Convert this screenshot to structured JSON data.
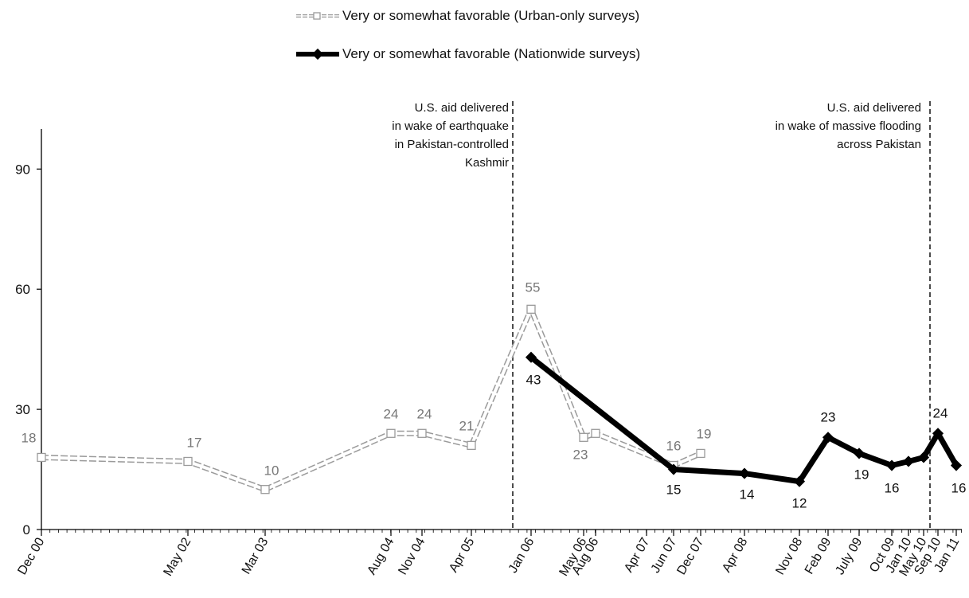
{
  "legend": {
    "urban": "Very or somewhat favorable (Urban-only surveys)",
    "nationwide": "Very or somewhat favorable (Nationwide surveys)"
  },
  "annotations": {
    "earthquake": [
      "U.S. aid delivered",
      "in wake of earthquake",
      "in Pakistan-controlled",
      "Kashmir"
    ],
    "flooding": [
      "U.S. aid delivered",
      "in wake of massive flooding",
      "across Pakistan"
    ]
  },
  "chart_data": {
    "type": "line",
    "ylim": [
      0,
      100
    ],
    "yticks": [
      0,
      30,
      60,
      90
    ],
    "grid": false,
    "legend_position": "top-center",
    "x_ticks": [
      "Dec 00",
      "May 02",
      "Mar 03",
      "Aug 04",
      "Nov 04",
      "Apr 05",
      "Jan 06",
      "May 06",
      "Aug 06",
      "Apr 07",
      "Jun 07",
      "Dec 07",
      "Apr 08",
      "Nov 08",
      "Feb 09",
      "July 09",
      "Oct 09",
      "Jan 10",
      "May 10",
      "Sep 10",
      "Jan 11"
    ],
    "series": [
      {
        "name": "Very or somewhat favorable (Urban-only surveys)",
        "style": "hollow",
        "color": "#9a9a9a",
        "points": [
          {
            "x": "Dec 00",
            "y": 18,
            "label": "18"
          },
          {
            "x": "May 02",
            "y": 17,
            "label": "17"
          },
          {
            "x": "Mar 03",
            "y": 10,
            "label": "10"
          },
          {
            "x": "Aug 04",
            "y": 24,
            "label": "24"
          },
          {
            "x": "Nov 04",
            "y": 24,
            "label": "24"
          },
          {
            "x": "Apr 05",
            "y": 21,
            "label": "21"
          },
          {
            "x": "Jan 06",
            "y": 55,
            "label": "55"
          },
          {
            "x": "May 06",
            "y": 23,
            "label": "23"
          },
          {
            "x": "Aug 06",
            "y": 24,
            "label": ""
          },
          {
            "x": "Jun 07",
            "y": 16,
            "label": "16"
          },
          {
            "x": "Dec 07",
            "y": 19,
            "label": "19"
          }
        ]
      },
      {
        "name": "Very or somewhat favorable (Nationwide surveys)",
        "style": "solid",
        "color": "#000000",
        "points": [
          {
            "x": "Jan 06",
            "y": 43,
            "label": "43"
          },
          {
            "x": "Jun 07",
            "y": 15,
            "label": "15"
          },
          {
            "x": "Apr 08",
            "y": 14,
            "label": "14"
          },
          {
            "x": "Nov 08",
            "y": 12,
            "label": "12"
          },
          {
            "x": "Feb 09",
            "y": 23,
            "label": "23"
          },
          {
            "x": "July 09",
            "y": 19,
            "label": "19"
          },
          {
            "x": "Oct 09",
            "y": 16,
            "label": "16"
          },
          {
            "x": "Jan 10",
            "y": 17,
            "label": ""
          },
          {
            "x": "May 10",
            "y": 18,
            "label": ""
          },
          {
            "x": "Sep 10",
            "y": 24,
            "label": "24"
          },
          {
            "x": "Jan 11",
            "y": 16,
            "label": "16"
          }
        ]
      }
    ]
  }
}
